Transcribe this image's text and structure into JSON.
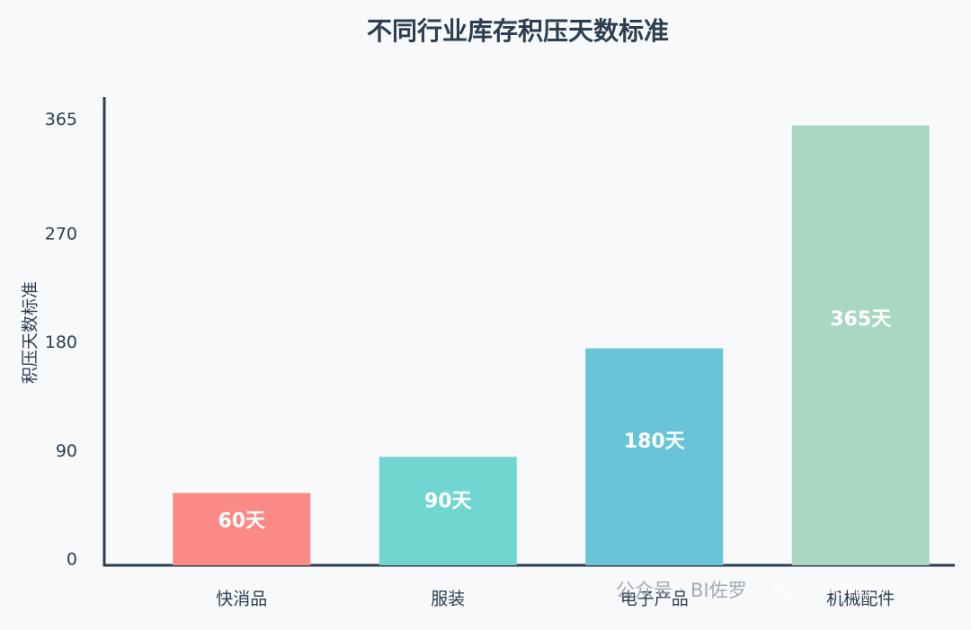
{
  "chart_data": {
    "type": "bar",
    "title": "不同行业库存积压天数标准",
    "y_label": "积压天数标准",
    "categories": [
      "快消品",
      "服装",
      "电子产品",
      "机械配件"
    ],
    "values": [
      60,
      90,
      180,
      365
    ],
    "value_labels": [
      "60天",
      "90天",
      "180天",
      "365天"
    ],
    "colors": [
      "#fb8a87",
      "#72d6d0",
      "#68c4d8",
      "#a8d7c2"
    ],
    "ylim": [
      0,
      387
    ],
    "yticks": [
      0,
      90,
      180,
      270,
      365
    ],
    "grid": false
  },
  "watermark": [
    "公众号 · BI佐罗",
    "知乎 @BI佐罗"
  ]
}
